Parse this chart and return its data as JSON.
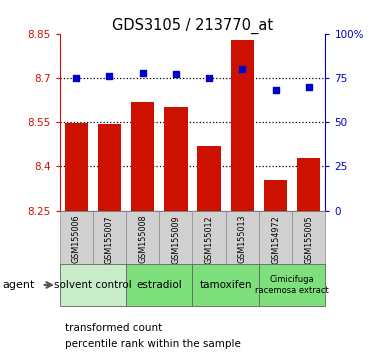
{
  "title": "GDS3105 / 213770_at",
  "samples": [
    "GSM155006",
    "GSM155007",
    "GSM155008",
    "GSM155009",
    "GSM155012",
    "GSM155013",
    "GSM154972",
    "GSM155005"
  ],
  "bar_values": [
    8.548,
    8.545,
    8.617,
    8.6,
    8.468,
    8.83,
    8.355,
    8.43
  ],
  "dot_values": [
    75,
    76,
    78,
    77,
    75,
    80,
    68,
    70
  ],
  "ylim_left": [
    8.25,
    8.85
  ],
  "ylim_right": [
    0,
    100
  ],
  "yticks_left": [
    8.25,
    8.4,
    8.55,
    8.7,
    8.85
  ],
  "yticks_right": [
    0,
    25,
    50,
    75,
    100
  ],
  "hlines": [
    8.4,
    8.55,
    8.7
  ],
  "bar_color": "#cc1100",
  "dot_color": "#0000cc",
  "bar_bottom": 8.25,
  "agent_groups": [
    {
      "label": "solvent control",
      "start": 0,
      "end": 2,
      "color": "#c8ecc8"
    },
    {
      "label": "estradiol",
      "start": 2,
      "end": 4,
      "color": "#7de07d"
    },
    {
      "label": "tamoxifen",
      "start": 4,
      "end": 6,
      "color": "#7de07d"
    },
    {
      "label": "Cimicifuga\nracemosa extract",
      "start": 6,
      "end": 8,
      "color": "#7de07d"
    }
  ],
  "legend_bar_label": "transformed count",
  "legend_dot_label": "percentile rank within the sample",
  "agent_label": "agent",
  "title_color": "#000000",
  "left_tick_color": "#cc1100",
  "right_tick_color": "#0000cc",
  "sample_box_color": "#d0d0d0",
  "sample_box_edge": "#888888"
}
